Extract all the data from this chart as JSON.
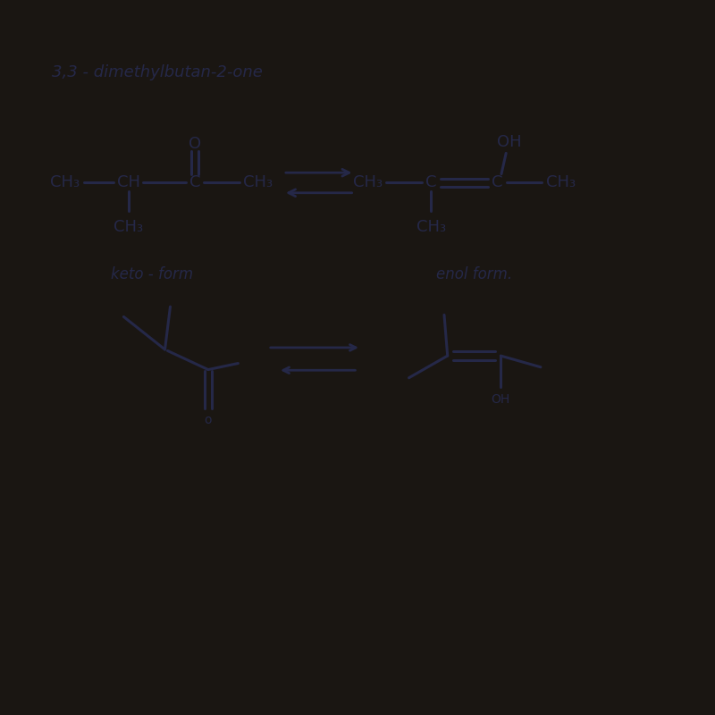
{
  "title": "3,3 - dimethylbutan-2-one",
  "bg_dark": "#1a1612",
  "paper_color": "#f0eeea",
  "ink_color": "#252848",
  "keto_label": "keto - form",
  "enol_label": "enol form.",
  "lw": 2.2,
  "fs_formula": 13,
  "fs_title": 13,
  "fs_label": 12,
  "fs_skeletal": 10
}
